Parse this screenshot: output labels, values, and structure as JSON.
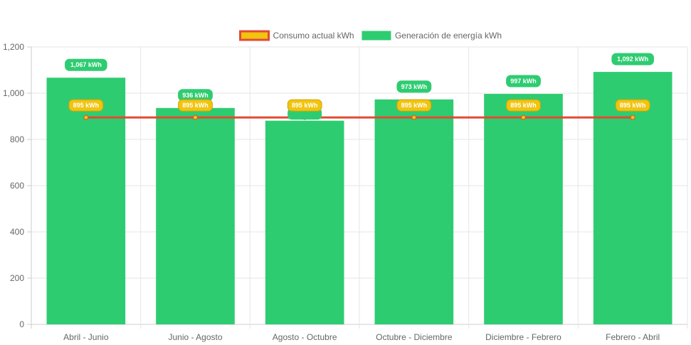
{
  "chart_data": {
    "type": "bar",
    "categories": [
      "Abril - Junio",
      "Junio - Agosto",
      "Agosto - Octubre",
      "Octubre - Diciembre",
      "Diciembre - Febrero",
      "Febrero - Abril"
    ],
    "series": [
      {
        "name": "Consumo actual kWh",
        "type": "line",
        "values": [
          895,
          895,
          895,
          895,
          895,
          895
        ],
        "labels": [
          "895 kWh",
          "895 kWh",
          "895 kWh",
          "895 kWh",
          "895 kWh",
          "895 kWh"
        ],
        "color": "#e34a33",
        "fill_color": "#f1c40f"
      },
      {
        "name": "Generación de energía kWh",
        "type": "bar",
        "values": [
          1067,
          936,
          881,
          973,
          997,
          1092
        ],
        "labels": [
          "1,067 kWh",
          "936 kWh",
          "",
          "973 kWh",
          "997 kWh",
          "1,092 kWh"
        ],
        "color": "#2ecc71"
      }
    ],
    "y_ticks": [
      "0",
      "200",
      "400",
      "600",
      "800",
      "1,000",
      "1,200"
    ],
    "ylim": [
      0,
      1200
    ],
    "grid": true,
    "legend_position": "top"
  }
}
